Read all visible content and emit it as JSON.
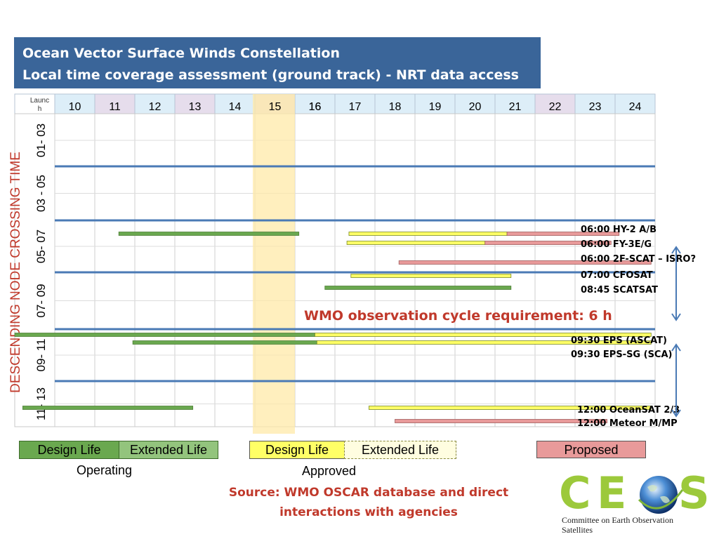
{
  "title": {
    "line1": "Ocean Vector Surface Winds Constellation",
    "line2": "Local time coverage assessment (ground track) - NRT data access"
  },
  "colors": {
    "title_bg": "#3a6599",
    "operating_design": "#6aa84f",
    "operating_extended": "#93c47d",
    "approved_design": "#ffff66",
    "approved_extended": "#fffde0",
    "proposed": "#e89a9a",
    "band_line": "#4a7ab5",
    "highlight_band": "#ffe9a8",
    "wmo_text": "#c0392b"
  },
  "chart_data": {
    "type": "gantt",
    "x_header_first": "Launch",
    "x_years": [
      "10",
      "11",
      "12",
      "13",
      "14",
      "15",
      "16",
      "17",
      "18",
      "19",
      "20",
      "21",
      "22",
      "23",
      "24"
    ],
    "x_range": [
      2009,
      2024
    ],
    "highlight_years": [
      2015,
      2016
    ],
    "y_axis_title": "DESCENDING NODE CROSSING TIME",
    "y_bands": [
      "01- 03",
      "03 - 05",
      "05- 07",
      "07- 09",
      "09- 11",
      "11- 13"
    ],
    "bars": [
      {
        "band": "05- 07",
        "category": "operating",
        "start": 2011.6,
        "end": 2016.1
      },
      {
        "band": "05- 07",
        "category": "approved",
        "start": 2017.35,
        "end": 2021.3
      },
      {
        "band": "05- 07",
        "category": "proposed",
        "start": 2021.3,
        "end": 2024.1
      },
      {
        "band": "05- 07",
        "category": "approved",
        "start": 2017.3,
        "end": 2020.75
      },
      {
        "band": "05- 07",
        "category": "proposed",
        "start": 2020.75,
        "end": 2023.9
      },
      {
        "band": "05- 07",
        "category": "proposed",
        "start": 2018.6,
        "end": 2024.9
      },
      {
        "band": "07- 09",
        "category": "approved",
        "start": 2017.4,
        "end": 2021.4
      },
      {
        "band": "07- 09",
        "category": "operating",
        "start": 2016.75,
        "end": 2021.4
      },
      {
        "band": "09- 11",
        "category": "operating",
        "start": 2009.0,
        "end": 2016.5
      },
      {
        "band": "09- 11",
        "category": "approved",
        "start": 2016.5,
        "end": 2024.9
      },
      {
        "band": "09- 11",
        "category": "operating",
        "start": 2011.95,
        "end": 2016.55
      },
      {
        "band": "09- 11",
        "category": "approved",
        "start": 2016.55,
        "end": 2024.9
      },
      {
        "band": "11- 13",
        "category": "operating",
        "start": 2009.2,
        "end": 2013.45
      },
      {
        "band": "11- 13",
        "category": "approved",
        "start": 2017.85,
        "end": 2024.9
      },
      {
        "band": "11- 13",
        "category": "proposed",
        "start": 2018.5,
        "end": 2023.8
      }
    ],
    "annotations": [
      {
        "band": "05- 07",
        "text": "06:00 HY-2 A/B"
      },
      {
        "band": "05- 07",
        "text": "06:00  FY-3E/G"
      },
      {
        "band": "05- 07",
        "text": "06:00 2F-SCAT – ISRO?"
      },
      {
        "band": "07- 09",
        "text": "07:00 CFOSAT"
      },
      {
        "band": "07- 09",
        "text": "08:45 SCATSAT"
      },
      {
        "band": "09- 11",
        "text": "09:30 EPS (ASCAT)"
      },
      {
        "band": "09- 11",
        "text": "09:30 EPS-SG (SCA)"
      },
      {
        "band": "11- 13",
        "text": "12:00 OceanSAT 2/3"
      },
      {
        "band": "11- 13",
        "text": "12:00 Meteor M/MP"
      }
    ],
    "requirement_text": "WMO observation cycle requirement: 6 h"
  },
  "legend": {
    "operating_design": "Design Life",
    "operating_extended": "Extended Life",
    "operating_label": "Operating",
    "approved_design": "Design Life",
    "approved_extended": "Extended Life",
    "approved_label": "Approved",
    "proposed": "Proposed"
  },
  "source": {
    "line1": "Source: WMO OSCAR database and direct",
    "line2": "interactions with agencies"
  },
  "logo": {
    "text": "CEOS",
    "caption": "Committee on Earth Observation Satellites"
  }
}
